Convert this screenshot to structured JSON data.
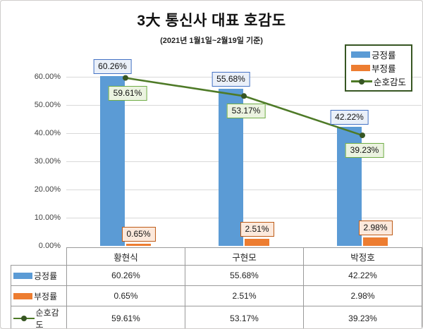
{
  "title": "3大 통신사 대표 호감도",
  "subtitle": "(2021년 1월1일~2월19일 기준)",
  "colors": {
    "positive_bar": "#5b9bd5",
    "negative_bar": "#ed7d31",
    "line": "#4e7a27",
    "marker": "#375623",
    "gridline": "#d9d9d9",
    "legend_border": "#375623",
    "table_border": "#9a9a9a"
  },
  "chart_data": {
    "type": "bar",
    "subtype": "bar-with-line-overlay",
    "title": "3大 통신사 대표 호감도",
    "subtitle": "(2021년 1월1일~2월19일 기준)",
    "categories": [
      "황현식",
      "구현모",
      "박정호"
    ],
    "series": [
      {
        "name": "긍정률",
        "type": "bar",
        "color": "#5b9bd5",
        "values": [
          60.26,
          55.68,
          42.22
        ],
        "labels": [
          "60.26%",
          "55.68%",
          "42.22%"
        ],
        "label_bg": "#eaf0f9",
        "label_border": "#4472c4"
      },
      {
        "name": "부정률",
        "type": "bar",
        "color": "#ed7d31",
        "values": [
          0.65,
          2.51,
          2.98
        ],
        "labels": [
          "0.65%",
          "2.51%",
          "2.98%"
        ],
        "label_bg": "#fce9dc",
        "label_border": "#be5b17"
      },
      {
        "name": "순호감도",
        "type": "line",
        "color": "#4e7a27",
        "marker_color": "#375623",
        "values": [
          59.61,
          53.17,
          39.23
        ],
        "labels": [
          "59.61%",
          "53.17%",
          "39.23%"
        ],
        "label_bg": "#ebf3e0",
        "label_border": "#70ad47"
      }
    ],
    "y_axis": {
      "min": 0,
      "max": 60,
      "step": 10,
      "ticks": [
        {
          "value": 0,
          "label": "0.00%"
        },
        {
          "value": 10,
          "label": "10.00%"
        },
        {
          "value": 20,
          "label": "20.00%"
        },
        {
          "value": 30,
          "label": "30.00%"
        },
        {
          "value": 40,
          "label": "40.00%"
        },
        {
          "value": 50,
          "label": "50.00%"
        },
        {
          "value": 60,
          "label": "60.00%"
        }
      ]
    },
    "grid": true,
    "legend_position": "top-right",
    "data_table_shown": true
  }
}
